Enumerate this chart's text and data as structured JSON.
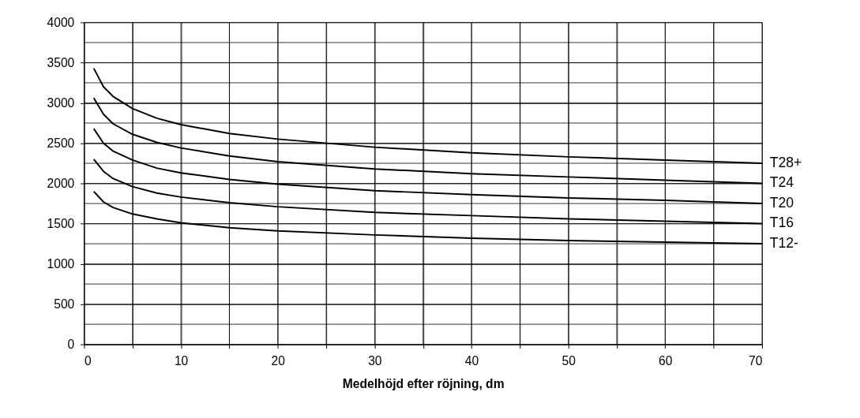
{
  "chart_data": {
    "type": "line",
    "xlabel": "Medelhöjd efter röjning, dm",
    "x": [
      1,
      2,
      3,
      5,
      7.5,
      10,
      15,
      20,
      30,
      40,
      50,
      60,
      70
    ],
    "series": [
      {
        "name": "T28+",
        "color": "#000000",
        "values": [
          3430,
          3200,
          3080,
          2930,
          2810,
          2730,
          2620,
          2550,
          2450,
          2380,
          2330,
          2290,
          2250
        ]
      },
      {
        "name": "T24",
        "color": "#000000",
        "values": [
          3060,
          2860,
          2740,
          2610,
          2510,
          2440,
          2340,
          2270,
          2180,
          2120,
          2080,
          2040,
          2000
        ]
      },
      {
        "name": "T20",
        "color": "#000000",
        "values": [
          2680,
          2500,
          2400,
          2290,
          2190,
          2130,
          2050,
          1990,
          1910,
          1860,
          1820,
          1790,
          1750
        ]
      },
      {
        "name": "T16",
        "color": "#000000",
        "values": [
          2300,
          2150,
          2060,
          1960,
          1880,
          1830,
          1760,
          1710,
          1640,
          1600,
          1560,
          1530,
          1500
        ]
      },
      {
        "name": "T12-",
        "color": "#000000",
        "values": [
          1900,
          1770,
          1700,
          1620,
          1560,
          1510,
          1450,
          1410,
          1360,
          1320,
          1290,
          1270,
          1250
        ]
      }
    ],
    "xlim": [
      0,
      70
    ],
    "xticks": [
      0,
      {
        "value": 5,
        "label": null
      },
      10,
      {
        "value": 15,
        "label": null
      },
      20,
      {
        "value": 25,
        "label": null
      },
      30,
      {
        "value": 35,
        "label": null
      },
      40,
      {
        "value": 45,
        "label": null
      },
      50,
      {
        "value": 55,
        "label": null
      },
      60,
      {
        "value": 65,
        "label": null
      },
      70
    ],
    "ylim": [
      0,
      4000
    ],
    "yticks": [
      0,
      {
        "value": 250,
        "label": null
      },
      500,
      {
        "value": 750,
        "label": null
      },
      1000,
      {
        "value": 1250,
        "label": null
      },
      1500,
      {
        "value": 1750,
        "label": null
      },
      2000,
      {
        "value": 2250,
        "label": null
      },
      2500,
      {
        "value": 2750,
        "label": null
      },
      3000,
      {
        "value": 3250,
        "label": null
      },
      3500,
      {
        "value": 3750,
        "label": null
      },
      4000
    ],
    "grid": true,
    "legend": false,
    "marker": "none",
    "line_style": "solid"
  }
}
